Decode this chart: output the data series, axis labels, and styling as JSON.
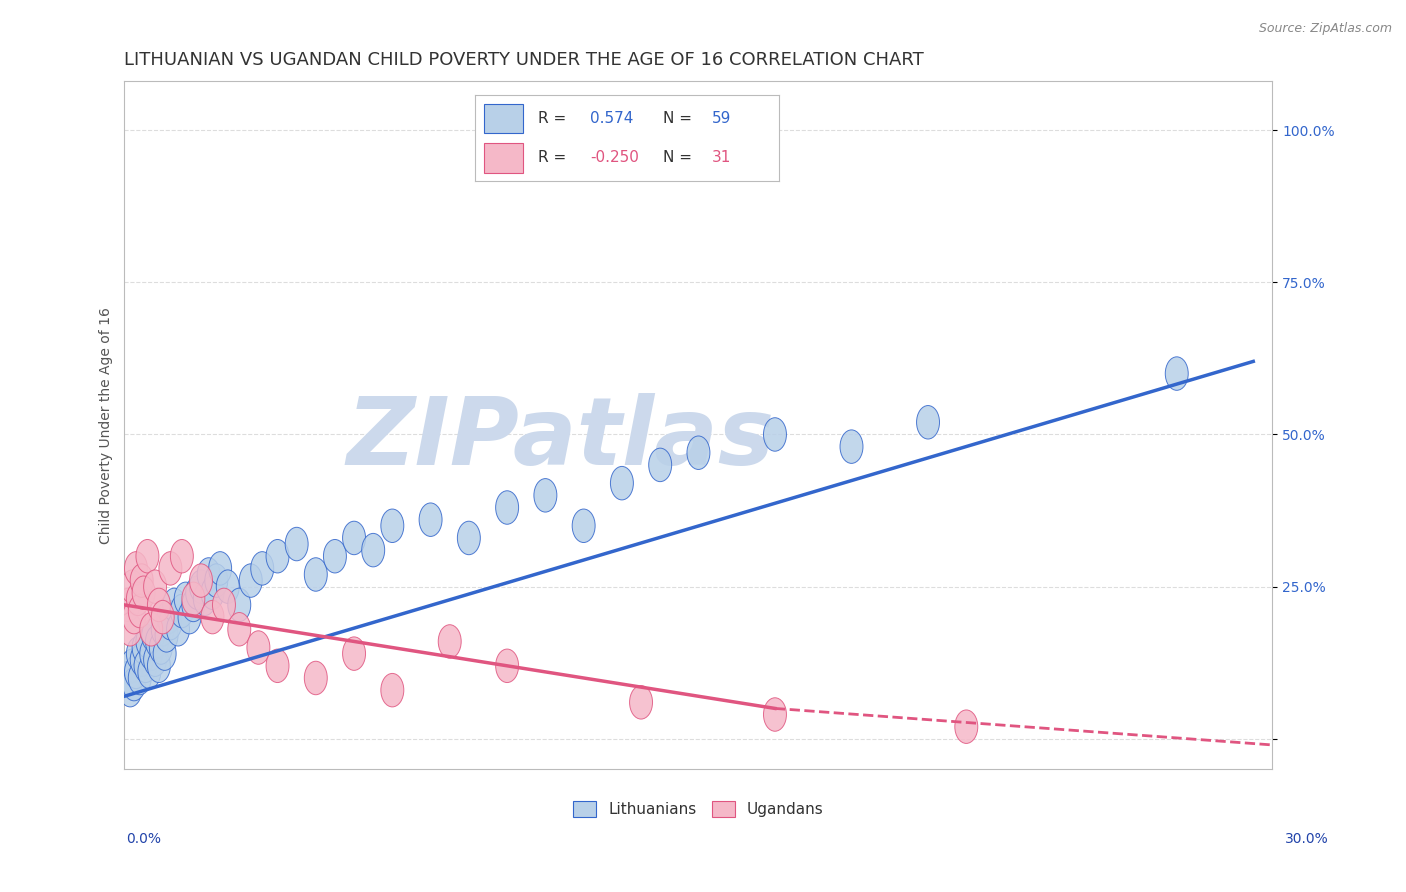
{
  "title": "LITHUANIAN VS UGANDAN CHILD POVERTY UNDER THE AGE OF 16 CORRELATION CHART",
  "source": "Source: ZipAtlas.com",
  "ylabel": "Child Poverty Under the Age of 16",
  "xlim": [
    0.0,
    30.0
  ],
  "ylim": [
    -5.0,
    108.0
  ],
  "yticks": [
    0,
    25,
    50,
    75,
    100
  ],
  "ytick_labels": [
    "",
    "25.0%",
    "50.0%",
    "75.0%",
    "100.0%"
  ],
  "blue_R": "0.574",
  "blue_N": "59",
  "pink_R": "-0.250",
  "pink_N": "31",
  "blue_color": "#b8d0e8",
  "pink_color": "#f5b8c8",
  "blue_line_color": "#3366cc",
  "pink_line_color": "#e05580",
  "blue_scatter_x": [
    0.1,
    0.15,
    0.2,
    0.25,
    0.3,
    0.35,
    0.4,
    0.45,
    0.5,
    0.55,
    0.6,
    0.65,
    0.7,
    0.75,
    0.8,
    0.85,
    0.9,
    0.95,
    1.0,
    1.05,
    1.1,
    1.15,
    1.2,
    1.3,
    1.4,
    1.5,
    1.6,
    1.7,
    1.8,
    1.9,
    2.0,
    2.1,
    2.2,
    2.3,
    2.4,
    2.5,
    2.7,
    3.0,
    3.3,
    3.6,
    4.0,
    4.5,
    5.0,
    5.5,
    6.0,
    6.5,
    7.0,
    8.0,
    9.0,
    10.0,
    11.0,
    12.0,
    13.0,
    14.0,
    15.0,
    17.0,
    19.0,
    21.0,
    27.5
  ],
  "blue_scatter_y": [
    10,
    8,
    12,
    9,
    11,
    14,
    10,
    13,
    15,
    12,
    16,
    11,
    14,
    17,
    13,
    16,
    12,
    15,
    18,
    14,
    17,
    20,
    19,
    22,
    18,
    21,
    23,
    20,
    22,
    24,
    25,
    23,
    27,
    24,
    26,
    28,
    25,
    22,
    26,
    28,
    30,
    32,
    27,
    30,
    33,
    31,
    35,
    36,
    33,
    38,
    40,
    35,
    42,
    45,
    47,
    50,
    48,
    52,
    60
  ],
  "pink_scatter_x": [
    0.1,
    0.15,
    0.2,
    0.25,
    0.3,
    0.35,
    0.4,
    0.45,
    0.5,
    0.6,
    0.7,
    0.8,
    0.9,
    1.0,
    1.2,
    1.5,
    1.8,
    2.0,
    2.3,
    2.6,
    3.0,
    3.5,
    4.0,
    5.0,
    6.0,
    7.0,
    8.5,
    10.0,
    13.5,
    17.0,
    22.0
  ],
  "pink_scatter_y": [
    22,
    18,
    25,
    20,
    28,
    23,
    21,
    26,
    24,
    30,
    18,
    25,
    22,
    20,
    28,
    30,
    23,
    26,
    20,
    22,
    18,
    15,
    12,
    10,
    14,
    8,
    16,
    12,
    6,
    4,
    2
  ],
  "blue_trend_x0": 0.0,
  "blue_trend_x1": 29.5,
  "blue_trend_y0": 7.0,
  "blue_trend_y1": 62.0,
  "pink_solid_x0": 0.0,
  "pink_solid_x1": 17.0,
  "pink_solid_y0": 22.0,
  "pink_solid_y1": 5.0,
  "pink_dash_x0": 17.0,
  "pink_dash_x1": 30.0,
  "pink_dash_y0": 5.0,
  "pink_dash_y1": -1.0,
  "watermark": "ZIPatlas",
  "watermark_color": "#ccd9ec",
  "background_color": "#ffffff",
  "grid_color": "#dddddd",
  "title_fontsize": 13,
  "tick_fontsize": 10,
  "ylabel_fontsize": 10,
  "legend_text_color": "#333333",
  "legend_value_color": "#3366cc",
  "legend_pink_value_color": "#e05580"
}
